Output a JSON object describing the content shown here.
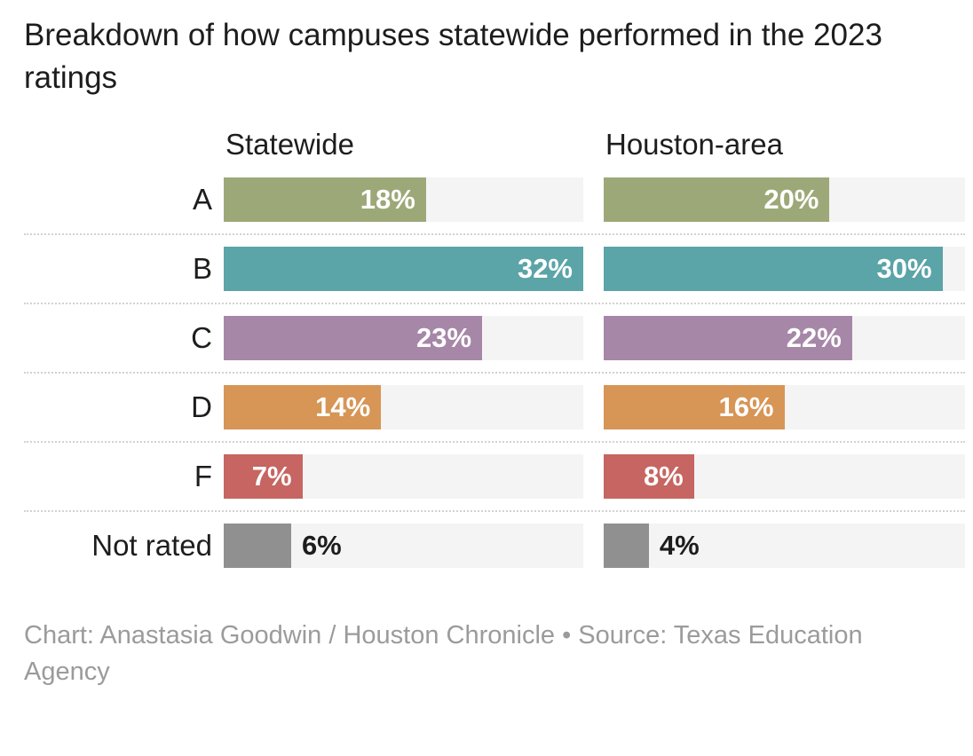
{
  "title": "Breakdown of how campuses statewide performed in the 2023 ratings",
  "footer": "Chart: Anastasia Goodwin / Houston Chronicle • Source: Texas Education Agency",
  "chart_data": {
    "type": "bar",
    "orientation": "horizontal",
    "title": "Breakdown of how campuses statewide performed in the 2023 ratings",
    "panels": [
      "Statewide",
      "Houston-area"
    ],
    "categories": [
      "A",
      "B",
      "C",
      "D",
      "F",
      "Not rated"
    ],
    "series": [
      {
        "name": "Statewide",
        "values": [
          18,
          32,
          23,
          14,
          7,
          6
        ]
      },
      {
        "name": "Houston-area",
        "values": [
          20,
          30,
          22,
          16,
          8,
          4
        ]
      }
    ],
    "value_suffix": "%",
    "xlim": [
      0,
      32
    ],
    "grid": "dotted row separators",
    "legend_position": "column headers above panels",
    "bar_colors": [
      "#9da878",
      "#5ba4a8",
      "#a787a8",
      "#d79556",
      "#c66561",
      "#909090"
    ],
    "track_color": "#f4f4f4",
    "label_color_inside": "#ffffff",
    "label_color_outside": "#1d1d1d"
  }
}
